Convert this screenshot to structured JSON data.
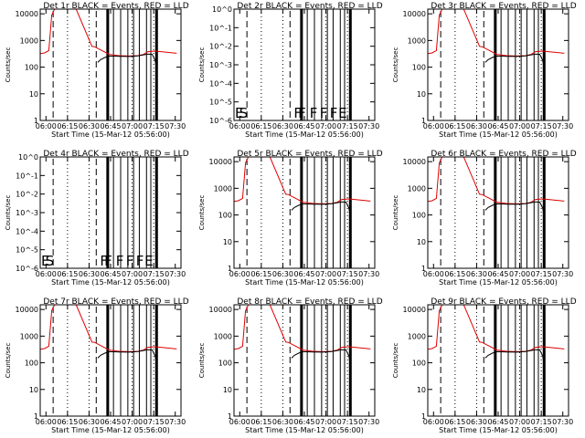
{
  "figure": {
    "panel_title_suffix": "BLACK = Events, RED = LLD",
    "x_label": "Start Time (15-Mar-12 05:56:00)",
    "y_label": "Counts/sec",
    "colors": {
      "events": "#000000",
      "lld": "#e00000"
    }
  },
  "chart_data": [
    {
      "type": "line",
      "title": "Det 1r  BLACK = Events, RED = LLD",
      "detector": "1r",
      "mode": "full",
      "xlabel": "Start Time (15-Mar-12 05:56:00)",
      "ylabel": "Counts/sec",
      "x_ticks": [
        "06:00",
        "06:15",
        "06:30",
        "06:45",
        "07:00",
        "07:15",
        "07:30"
      ],
      "y_ticks": [
        "1",
        "10",
        "100",
        "1000",
        "10000"
      ],
      "ylim": [
        1,
        15000
      ],
      "markers": []
    },
    {
      "type": "line",
      "title": "Det 2r  BLACK = Events, RED = LLD",
      "detector": "2r",
      "mode": "empty",
      "xlabel": "Start Time (15-Mar-12 05:56:00)",
      "ylabel": "Counts/sec",
      "x_ticks": [
        "06:00",
        "06:15",
        "06:30",
        "06:45",
        "07:00",
        "07:15",
        "07:30"
      ],
      "y_ticks": [
        "10^0",
        "10^-1",
        "10^-2",
        "10^-3",
        "10^-4",
        "10^-5",
        "10^-6"
      ],
      "ylim": [
        1,
        1e-06
      ],
      "markers": [
        {
          "t": "E",
          "x": "05:56"
        },
        {
          "t": "S",
          "x": "05:59"
        },
        {
          "t": "F",
          "x": "06:37"
        },
        {
          "t": "F",
          "x": "06:40"
        },
        {
          "t": "F",
          "x": "06:48"
        },
        {
          "t": "F",
          "x": "06:55"
        },
        {
          "t": "F",
          "x": "07:02"
        },
        {
          "t": "E",
          "x": "07:08"
        }
      ]
    },
    {
      "type": "line",
      "title": "Det 3r  BLACK = Events, RED = LLD",
      "detector": "3r",
      "mode": "full",
      "xlabel": "Start Time (15-Mar-12 05:56:00)",
      "ylabel": "Counts/sec",
      "x_ticks": [
        "06:00",
        "06:15",
        "06:30",
        "06:45",
        "07:00",
        "07:15",
        "07:30"
      ],
      "y_ticks": [
        "1",
        "10",
        "100",
        "1000",
        "10000"
      ],
      "ylim": [
        1,
        15000
      ],
      "markers": []
    },
    {
      "type": "line",
      "title": "Det 4r  BLACK = Events, RED = LLD",
      "detector": "4r",
      "mode": "empty",
      "xlabel": "Start Time (15-Mar-12 05:56:00)",
      "ylabel": "Counts/sec",
      "x_ticks": [
        "06:00",
        "06:15",
        "06:30",
        "06:45",
        "07:00",
        "07:15",
        "07:30"
      ],
      "y_ticks": [
        "10^0",
        "10^-1",
        "10^-2",
        "10^-3",
        "10^-4",
        "10^-5",
        "10^-6"
      ],
      "ylim": [
        1,
        1e-06
      ],
      "markers": [
        {
          "t": "E",
          "x": "05:56"
        },
        {
          "t": "S",
          "x": "05:59"
        },
        {
          "t": "F",
          "x": "06:37"
        },
        {
          "t": "F",
          "x": "06:40"
        },
        {
          "t": "F",
          "x": "06:48"
        },
        {
          "t": "F",
          "x": "06:55"
        },
        {
          "t": "F",
          "x": "07:02"
        },
        {
          "t": "E",
          "x": "07:08"
        }
      ]
    },
    {
      "type": "line",
      "title": "Det 5r  BLACK = Events, RED = LLD",
      "detector": "5r",
      "mode": "full",
      "xlabel": "Start Time (15-Mar-12 05:56:00)",
      "ylabel": "Counts/sec",
      "x_ticks": [
        "06:00",
        "06:15",
        "06:30",
        "06:45",
        "07:00",
        "07:15",
        "07:30"
      ],
      "y_ticks": [
        "1",
        "10",
        "100",
        "1000",
        "10000"
      ],
      "ylim": [
        1,
        15000
      ],
      "markers": []
    },
    {
      "type": "line",
      "title": "Det 6r  BLACK = Events, RED = LLD",
      "detector": "6r",
      "mode": "full",
      "xlabel": "Start Time (15-Mar-12 05:56:00)",
      "ylabel": "Counts/sec",
      "x_ticks": [
        "06:00",
        "06:15",
        "06:30",
        "06:45",
        "07:00",
        "07:15",
        "07:30"
      ],
      "y_ticks": [
        "1",
        "10",
        "100",
        "1000",
        "10000"
      ],
      "ylim": [
        1,
        15000
      ],
      "markers": []
    },
    {
      "type": "line",
      "title": "Det 7r  BLACK = Events, RED = LLD",
      "detector": "7r",
      "mode": "full",
      "xlabel": "Start Time (15-Mar-12 05:56:00)",
      "ylabel": "Counts/sec",
      "x_ticks": [
        "06:00",
        "06:15",
        "06:30",
        "06:45",
        "07:00",
        "07:15",
        "07:30"
      ],
      "y_ticks": [
        "1",
        "10",
        "100",
        "1000",
        "10000"
      ],
      "ylim": [
        1,
        15000
      ],
      "markers": []
    },
    {
      "type": "line",
      "title": "Det 8r  BLACK = Events, RED = LLD",
      "detector": "8r",
      "mode": "full",
      "xlabel": "Start Time (15-Mar-12 05:56:00)",
      "ylabel": "Counts/sec",
      "x_ticks": [
        "06:00",
        "06:15",
        "06:30",
        "06:45",
        "07:00",
        "07:15",
        "07:30"
      ],
      "y_ticks": [
        "1",
        "10",
        "100",
        "1000",
        "10000"
      ],
      "ylim": [
        1,
        15000
      ],
      "markers": []
    },
    {
      "type": "line",
      "title": "Det 9r  BLACK = Events, RED = LLD",
      "detector": "9r",
      "mode": "full",
      "xlabel": "Start Time (15-Mar-12 05:56:00)",
      "ylabel": "Counts/sec",
      "x_ticks": [
        "06:00",
        "06:15",
        "06:30",
        "06:45",
        "07:00",
        "07:15",
        "07:30"
      ],
      "y_ticks": [
        "1",
        "10",
        "100",
        "1000",
        "10000"
      ],
      "ylim": [
        1,
        15000
      ],
      "markers": []
    }
  ],
  "time_model": {
    "x_range_minutes_from_0556": [
      0,
      98
    ],
    "dashed_lines_min": [
      9,
      39
    ],
    "dotted_lines_min": [
      19,
      34,
      64,
      79
    ],
    "solid_lines_min": [
      51,
      56,
      61,
      65,
      69,
      74,
      77
    ],
    "thick_lines_min": [
      47,
      81
    ],
    "lld_curve": [
      [
        0,
        320
      ],
      [
        3,
        340
      ],
      [
        6,
        420
      ],
      [
        8,
        9000
      ],
      [
        10,
        15000
      ],
      [
        25,
        15000
      ],
      [
        36,
        600
      ],
      [
        38,
        580
      ],
      [
        43,
        420
      ],
      [
        48,
        300
      ],
      [
        55,
        270
      ],
      [
        62,
        260
      ],
      [
        68,
        270
      ],
      [
        72,
        300
      ],
      [
        75,
        380
      ],
      [
        80,
        400
      ],
      [
        88,
        360
      ],
      [
        95,
        330
      ]
    ],
    "events_curve": [
      [
        40,
        150
      ],
      [
        42,
        190
      ],
      [
        45,
        230
      ],
      [
        48,
        260
      ],
      [
        55,
        255
      ],
      [
        62,
        250
      ],
      [
        68,
        265
      ],
      [
        72,
        290
      ],
      [
        75,
        310
      ],
      [
        78,
        300
      ],
      [
        80,
        180
      ],
      [
        81,
        90
      ]
    ]
  }
}
